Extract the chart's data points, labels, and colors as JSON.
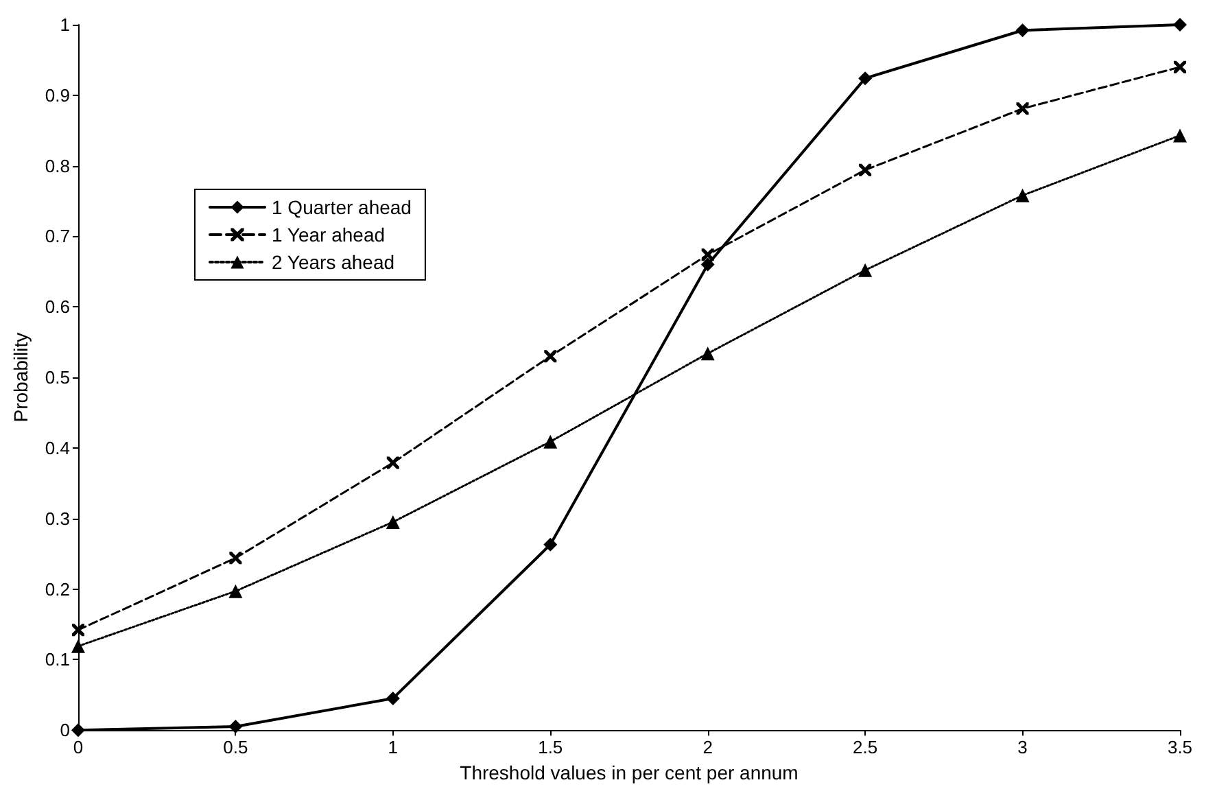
{
  "chart_data": {
    "type": "line",
    "xlabel": "Threshold values in per cent per annum",
    "ylabel": "Probability",
    "x": [
      0,
      0.5,
      1,
      1.5,
      2,
      2.5,
      3,
      3.5
    ],
    "series": [
      {
        "name": "1 Quarter ahead",
        "color": "#000000",
        "marker": "diamond",
        "line_style": "solid",
        "values": [
          0,
          0.005,
          0.045,
          0.263,
          0.66,
          0.924,
          0.992,
          1.0
        ]
      },
      {
        "name": "1 Year ahead",
        "color": "#000000",
        "marker": "cross",
        "line_style": "dashed",
        "values": [
          0.142,
          0.244,
          0.379,
          0.53,
          0.674,
          0.794,
          0.881,
          0.94
        ]
      },
      {
        "name": "2 Years ahead",
        "color": "#000000",
        "marker": "triangle",
        "line_style": "dotted",
        "values": [
          0.119,
          0.197,
          0.295,
          0.409,
          0.534,
          0.652,
          0.758,
          0.843
        ]
      }
    ],
    "xlim": [
      0,
      3.5
    ],
    "xticks": [
      0,
      0.5,
      1,
      1.5,
      2,
      2.5,
      3,
      3.5
    ],
    "ylim": [
      0,
      1
    ],
    "yticks": [
      0,
      0.1,
      0.2,
      0.3,
      0.4,
      0.5,
      0.6,
      0.7,
      0.8,
      0.9,
      1
    ],
    "grid": false,
    "legend": "top left"
  }
}
